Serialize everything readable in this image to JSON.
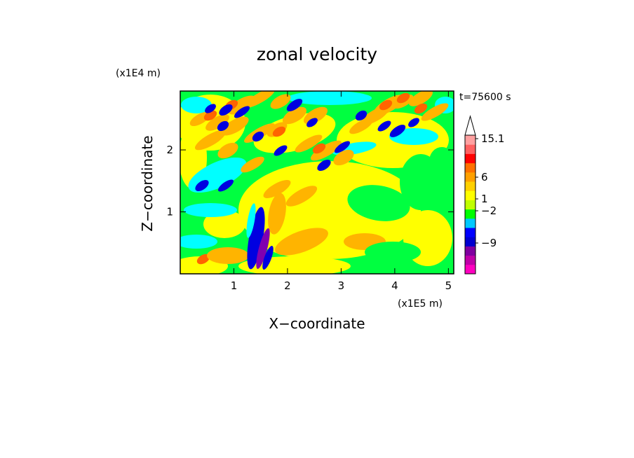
{
  "chart_data": {
    "type": "heatmap",
    "title": "zonal velocity",
    "xlabel": "X−coordinate",
    "ylabel": "Z−coordinate",
    "x_unit": "(x1E5 m)",
    "y_unit": "(x1E4 m)",
    "time_label": "t=75600 s",
    "xlim": [
      0,
      5.1
    ],
    "ylim": [
      0,
      2.95
    ],
    "x_ticks": [
      {
        "value": 1,
        "label": "1"
      },
      {
        "value": 2,
        "label": "2"
      },
      {
        "value": 3,
        "label": "3"
      },
      {
        "value": 4,
        "label": "4"
      },
      {
        "value": 5,
        "label": "5"
      }
    ],
    "y_ticks": [
      {
        "value": 1,
        "label": "1"
      },
      {
        "value": 2,
        "label": "2"
      }
    ],
    "colorbar": {
      "labels": [
        {
          "value": 15.1,
          "label": "15.1"
        },
        {
          "value": 6,
          "label": "6"
        },
        {
          "value": 1,
          "label": "1"
        },
        {
          "value": -2,
          "label": "−2"
        },
        {
          "value": -9,
          "label": "−9"
        }
      ],
      "colors": [
        "#ff00c0",
        "#c000a8",
        "#8000a0",
        "#0000d0",
        "#0000ff",
        "#00c8ff",
        "#00ff00",
        "#c0ff00",
        "#ffff00",
        "#ffd000",
        "#ffa000",
        "#ff7000",
        "#ff0000",
        "#ff6060",
        "#ffa0a0"
      ]
    },
    "palette": {
      "green": "#00ff40",
      "cyan": "#00ffff",
      "yellow": "#ffff00",
      "orange": "#ffb400",
      "red_orange": "#ff6400",
      "blue": "#0000e0",
      "purple": "#8000b0"
    }
  }
}
